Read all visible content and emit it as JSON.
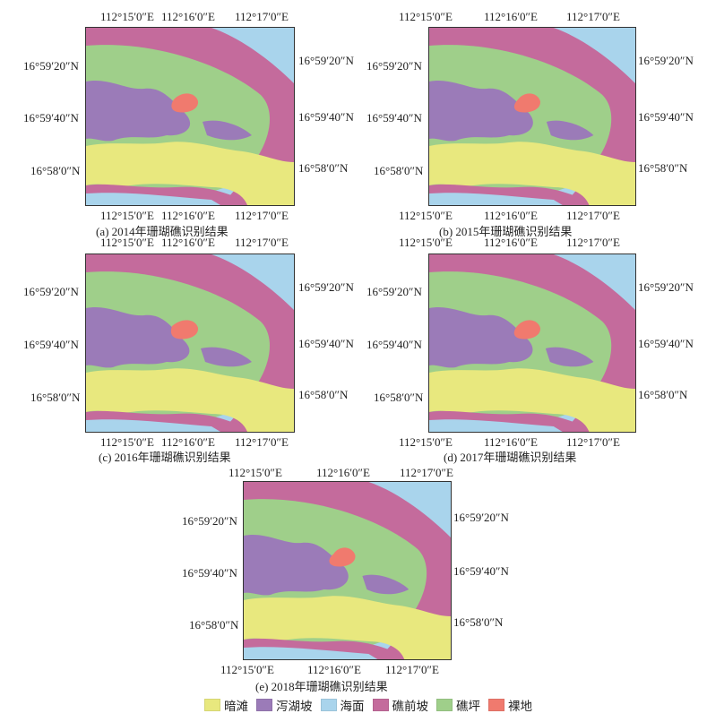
{
  "figure": {
    "panels": [
      {
        "id": "a",
        "caption": "(a) 2014年珊瑚礁识别结果",
        "lon_labels": [
          "112°15′0″E",
          "112°16′0″E",
          "112°17′0″E"
        ],
        "lat_labels": [
          "16°59′20″N",
          "16°59′40″N",
          "16°58′0″N"
        ],
        "variant": 0
      },
      {
        "id": "b",
        "caption": "(b) 2015年珊瑚礁识别结果",
        "lon_labels": [
          "112°15′0″E",
          "112°16′0″E",
          "112°17′0″E"
        ],
        "lat_labels": [
          "16°59′20″N",
          "16°59′40″N",
          "16°58′0″N"
        ],
        "variant": 1
      },
      {
        "id": "c",
        "caption": "(c) 2016年珊瑚礁识别结果",
        "lon_labels": [
          "112°15′0″E",
          "112°16′0″E",
          "112°17′0″E"
        ],
        "lat_labels": [
          "16°59′20″N",
          "16°59′40″N",
          "16°58′0″N"
        ],
        "variant": 2
      },
      {
        "id": "d",
        "caption": "(d) 2017年珊瑚礁识别结果",
        "lon_labels": [
          "112°15′0″E",
          "112°16′0″E",
          "112°17′0″E"
        ],
        "lat_labels": [
          "16°59′20″N",
          "16°59′40″N",
          "16°58′0″N"
        ],
        "variant": 3
      },
      {
        "id": "e",
        "caption": "(e) 2018年珊瑚礁识别结果",
        "lon_labels": [
          "112°15′0″E",
          "112°16′0″E",
          "112°17′0″E"
        ],
        "lat_labels": [
          "16°59′20″N",
          "16°59′40″N",
          "16°58′0″N"
        ],
        "variant": 4
      }
    ],
    "legend": [
      {
        "label": "暗滩",
        "color": "#e8e87e"
      },
      {
        "label": "泻湖坡",
        "color": "#9b7bb8"
      },
      {
        "label": "海面",
        "color": "#a9d4ec"
      },
      {
        "label": "礁前坡",
        "color": "#c46b9c"
      },
      {
        "label": "礁坪",
        "color": "#9fcf8a"
      },
      {
        "label": "裸地",
        "color": "#f07a6e"
      }
    ]
  }
}
